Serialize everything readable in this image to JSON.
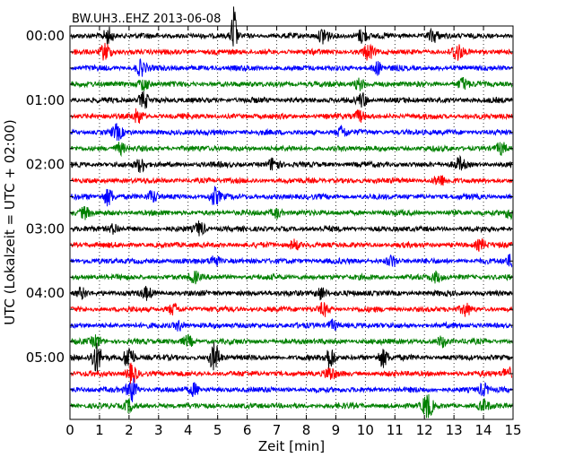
{
  "chart_data": {
    "type": "line",
    "title": "BW.UH3..EHZ 2013-06-08",
    "xlabel": "Zeit  [min]",
    "ylabel": "UTC (Lokalzeit = UTC + 02:00)",
    "xlim": [
      0,
      15
    ],
    "x_ticks": [
      "0",
      "1",
      "2",
      "3",
      "4",
      "5",
      "6",
      "7",
      "8",
      "9",
      "10",
      "11",
      "12",
      "13",
      "14",
      "15"
    ],
    "y_tick_labels": [
      "00:00",
      "01:00",
      "02:00",
      "03:00",
      "04:00",
      "05:00"
    ],
    "grid": "vertical dotted",
    "trace_interval_min": 15,
    "color_cycle": [
      "#000000",
      "#ff0000",
      "#0000ff",
      "#008000"
    ],
    "series": [
      {
        "start": "00:00",
        "bursts": [
          [
            1.3,
            2.2
          ],
          [
            5.55,
            9
          ],
          [
            8.6,
            2.5
          ],
          [
            9.9,
            2
          ],
          [
            12.3,
            1.6
          ]
        ]
      },
      {
        "start": "00:15",
        "bursts": [
          [
            1.2,
            2.5
          ],
          [
            10.1,
            2
          ],
          [
            13.1,
            2.3
          ]
        ]
      },
      {
        "start": "00:30",
        "bursts": [
          [
            2.4,
            2
          ],
          [
            10.4,
            1.6
          ]
        ]
      },
      {
        "start": "00:45",
        "bursts": [
          [
            2.5,
            1.8
          ],
          [
            9.8,
            1.5
          ],
          [
            13.3,
            1.5
          ]
        ]
      },
      {
        "start": "01:00",
        "bursts": [
          [
            2.5,
            2.2
          ],
          [
            9.9,
            1.8
          ]
        ]
      },
      {
        "start": "01:15",
        "bursts": [
          [
            2.3,
            1.8
          ],
          [
            9.8,
            1.5
          ]
        ]
      },
      {
        "start": "01:30",
        "bursts": [
          [
            1.6,
            1.8
          ],
          [
            9.2,
            1.5
          ]
        ]
      },
      {
        "start": "01:45",
        "bursts": [
          [
            1.7,
            1.4
          ],
          [
            14.6,
            1.6
          ]
        ]
      },
      {
        "start": "02:00",
        "bursts": [
          [
            2.4,
            1.8
          ],
          [
            6.9,
            1.8
          ],
          [
            13.2,
            1.6
          ]
        ]
      },
      {
        "start": "02:15",
        "bursts": [
          [
            12.5,
            1.4
          ]
        ]
      },
      {
        "start": "02:30",
        "bursts": [
          [
            1.3,
            2.4
          ],
          [
            4.9,
            2.3
          ],
          [
            2.8,
            1.5
          ]
        ]
      },
      {
        "start": "02:45",
        "bursts": [
          [
            0.5,
            1.5
          ],
          [
            7.0,
            1.4
          ],
          [
            14.9,
            1.5
          ]
        ]
      },
      {
        "start": "03:00",
        "bursts": [
          [
            4.4,
            2
          ],
          [
            1.5,
            1.3
          ]
        ]
      },
      {
        "start": "03:15",
        "bursts": [
          [
            7.6,
            1.4
          ],
          [
            13.9,
            1.4
          ]
        ]
      },
      {
        "start": "03:30",
        "bursts": [
          [
            4.9,
            1.6
          ],
          [
            10.9,
            1.4
          ],
          [
            14.9,
            1.4
          ]
        ]
      },
      {
        "start": "03:45",
        "bursts": [
          [
            4.2,
            1.5
          ],
          [
            12.4,
            1.3
          ]
        ]
      },
      {
        "start": "04:00",
        "bursts": [
          [
            0.4,
            1.5
          ],
          [
            2.6,
            1.5
          ],
          [
            8.5,
            1.8
          ]
        ]
      },
      {
        "start": "04:15",
        "bursts": [
          [
            3.5,
            1.4
          ],
          [
            8.6,
            1.6
          ],
          [
            13.4,
            1.5
          ]
        ]
      },
      {
        "start": "04:30",
        "bursts": [
          [
            3.7,
            1.4
          ],
          [
            8.9,
            1.4
          ]
        ]
      },
      {
        "start": "04:45",
        "bursts": [
          [
            0.9,
            1.5
          ],
          [
            4.0,
            1.4
          ],
          [
            12.6,
            1.4
          ]
        ]
      },
      {
        "start": "05:00",
        "bursts": [
          [
            0.9,
            4
          ],
          [
            2.0,
            3.6
          ],
          [
            4.9,
            3.8
          ],
          [
            8.8,
            3
          ],
          [
            10.6,
            2.4
          ]
        ]
      },
      {
        "start": "05:15",
        "bursts": [
          [
            2.1,
            2.6
          ],
          [
            8.8,
            1.6
          ],
          [
            14.8,
            1.8
          ]
        ]
      },
      {
        "start": "05:30",
        "bursts": [
          [
            2.1,
            3.2
          ],
          [
            4.2,
            1.6
          ],
          [
            14.0,
            1.5
          ]
        ]
      },
      {
        "start": "05:45",
        "bursts": [
          [
            12.1,
            3.4
          ],
          [
            2.0,
            1.6
          ],
          [
            14.0,
            1.4
          ]
        ]
      }
    ]
  }
}
